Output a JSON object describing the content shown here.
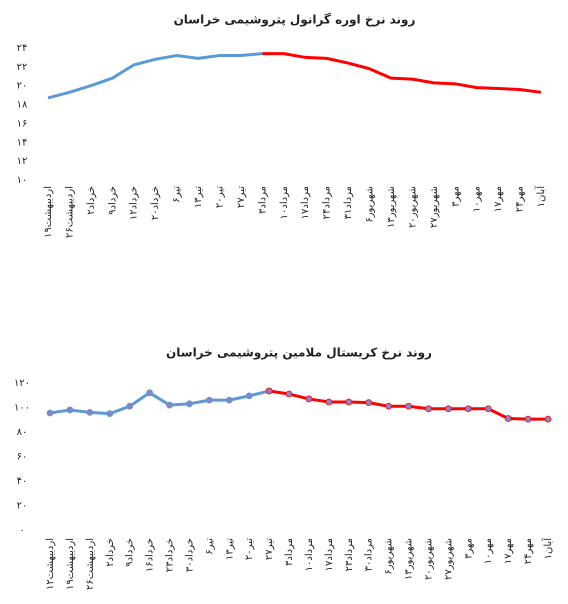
{
  "chart_data": [
    {
      "type": "line",
      "title": "روند نرخ اوره گرانول پتروشیمی خراسان",
      "categories": [
        "۱۹اردیبهشت",
        "۲۶اردیبهشت",
        "۲خرداد",
        "۹خرداد",
        "۱۲خرداد",
        "۲۰خرداد",
        "۶تیر",
        "۱۳تیر",
        "۲۰تیر",
        "۲۷تیر",
        "۳مرداد",
        "۱۰مرداد",
        "۱۷مرداد",
        "۲۴مرداد",
        "۳۱مرداد",
        "۶شهریور",
        "۱۳شهریور",
        "۲۰شهریور",
        "۲۷شهریور",
        "۳مهر",
        "۱۰مهر",
        "۱۷مهر",
        "۲۴مهر",
        "۱آبان"
      ],
      "series": [
        {
          "color": "#5b9bd5",
          "values": [
            18.7,
            19.3,
            20.0,
            20.8,
            22.2,
            22.8,
            23.2,
            22.9,
            23.2,
            23.2,
            23.4,
            null,
            null,
            null,
            null,
            null,
            null,
            null,
            null,
            null,
            null,
            null,
            null,
            null
          ]
        },
        {
          "color": "#ff0000",
          "values": [
            null,
            null,
            null,
            null,
            null,
            null,
            null,
            null,
            null,
            null,
            23.4,
            23.4,
            23.0,
            22.9,
            22.4,
            21.8,
            20.8,
            20.7,
            20.3,
            20.2,
            19.8,
            19.7,
            19.6,
            19.3
          ]
        }
      ],
      "ylim": [
        10,
        24
      ],
      "yticks": [
        {
          "value": 10,
          "label": "۱۰"
        },
        {
          "value": 12,
          "label": "۱۲"
        },
        {
          "value": 14,
          "label": "۱۴"
        },
        {
          "value": 16,
          "label": "۱۶"
        },
        {
          "value": 18,
          "label": "۱۸"
        },
        {
          "value": 20,
          "label": "۲۰"
        },
        {
          "value": 22,
          "label": "۲۲"
        },
        {
          "value": 24,
          "label": "۲۴"
        }
      ]
    },
    {
      "type": "line",
      "title": "روند نرخ کریستال ملامین پتروشیمی خراسان",
      "categories": [
        "۱۲اردیبهشت",
        "۱۹اردیبهشت",
        "۲۶اردیبهشت",
        "۲خرداد",
        "۹خرداد",
        "۱۶خرداد",
        "۲۳خرداد",
        "۳۰خرداد",
        "۶تیر",
        "۱۳تیر",
        "۲۰تیر",
        "۲۷تیر",
        "۳مرداد",
        "۱۰مرداد",
        "۱۷مرداد",
        "۲۳مرداد",
        "۳۰مرداد",
        "۶شهریور",
        "۱۳شهریور",
        "۲۰شهریور",
        "۲۷شهریور",
        "۳مهر",
        "۱۰مهر",
        "۱۷مهر",
        "۲۴مهر",
        "۱آبان"
      ],
      "series": [
        {
          "color": "#5b9bd5",
          "marker_color": "#8c82c8",
          "values": [
            95.5,
            98,
            96,
            95,
            101,
            112,
            102,
            103,
            106,
            106,
            109.5,
            113.5,
            null,
            null,
            null,
            null,
            null,
            null,
            null,
            null,
            null,
            null,
            null,
            null,
            null,
            null
          ]
        },
        {
          "color": "#ff0000",
          "marker_color": "#8c82c8",
          "values": [
            null,
            null,
            null,
            null,
            null,
            null,
            null,
            null,
            null,
            null,
            null,
            113.5,
            111,
            107,
            104.5,
            104.5,
            104,
            101,
            101,
            99,
            99,
            99,
            99,
            91,
            90.5,
            90.5
          ]
        }
      ],
      "ylim": [
        0,
        120
      ],
      "yticks": [
        {
          "value": 0,
          "label": "۰"
        },
        {
          "value": 20,
          "label": "۲۰"
        },
        {
          "value": 40,
          "label": "۴۰"
        },
        {
          "value": 60,
          "label": "۶۰"
        },
        {
          "value": 80,
          "label": "۸۰"
        },
        {
          "value": 100,
          "label": "۱۰۰"
        },
        {
          "value": 120,
          "label": "۱۲۰"
        }
      ]
    }
  ]
}
